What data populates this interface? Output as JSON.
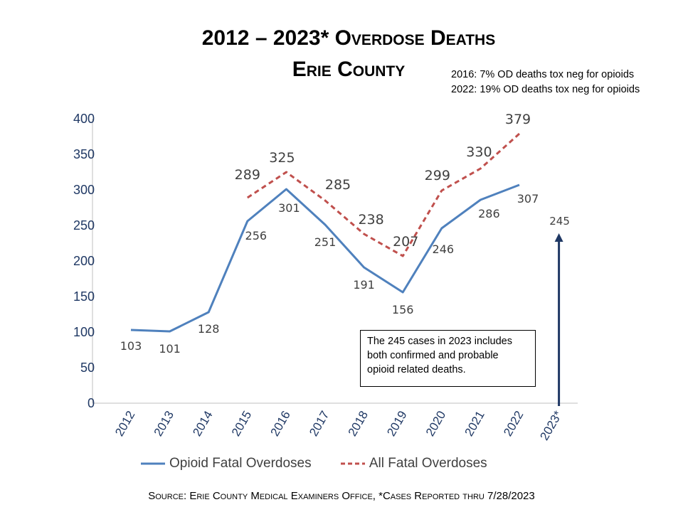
{
  "title": {
    "line1": "2012 – 2023* Overdose Deaths",
    "line2": "Erie County"
  },
  "notes": [
    "2016: 7% OD deaths tox neg for opioids",
    "2022: 19% OD deaths tox neg for opioids"
  ],
  "callout": "The 245 cases in 2023 includes both confirmed and probable opioid related deaths.",
  "source": "Source: Erie County Medical Examiners Office, *Cases Reported thru 7/28/2023",
  "colors": {
    "opioid": "#4f81bd",
    "all": "#c0504d",
    "arrow": "#1f3864",
    "axis": "#1f3864"
  },
  "chart_data": {
    "type": "line",
    "categories": [
      "2012",
      "2013",
      "2014",
      "2015",
      "2016",
      "2017",
      "2018",
      "2019",
      "2020",
      "2021",
      "2022",
      "2023*"
    ],
    "ylim": [
      0,
      400
    ],
    "yticks": [
      0,
      50,
      100,
      150,
      200,
      250,
      300,
      350,
      400
    ],
    "grid": false,
    "series": [
      {
        "name": "Opioid Fatal Overdoses",
        "style": "solid",
        "values": [
          103,
          101,
          128,
          256,
          301,
          251,
          191,
          156,
          246,
          286,
          307,
          null
        ]
      },
      {
        "name": "All Fatal Overdoses",
        "style": "dashed",
        "values": [
          null,
          null,
          null,
          289,
          325,
          285,
          238,
          207,
          299,
          330,
          379,
          null
        ]
      }
    ],
    "annotation_2023": {
      "category": "2023*",
      "value": 245,
      "label": "245"
    }
  }
}
